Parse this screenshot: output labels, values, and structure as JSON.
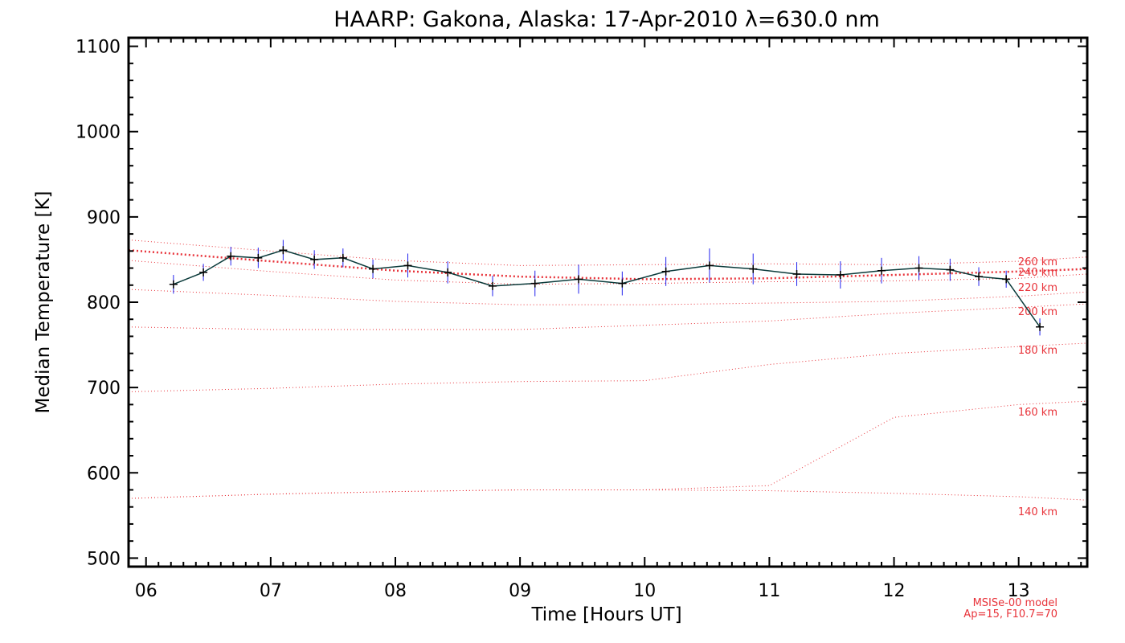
{
  "chart_data": {
    "type": "line",
    "title": "HAARP: Gakona,  Alaska: 17-Apr-2010 λ=630.0 nm",
    "xlabel": "Time [Hours UT]",
    "ylabel": "Median Temperature [K]",
    "xlim": [
      5.86,
      13.55
    ],
    "ylim": [
      490,
      1110
    ],
    "x_ticks": [
      "06",
      "07",
      "08",
      "09",
      "10",
      "11",
      "12",
      "13"
    ],
    "y_ticks": [
      "500",
      "600",
      "700",
      "800",
      "900",
      "1000",
      "1100"
    ],
    "series": [
      {
        "color": "#0a3a3a",
        "errorbar_color": "#2222ee",
        "x": [
          6.22,
          6.46,
          6.68,
          6.9,
          7.1,
          7.35,
          7.58,
          7.82,
          8.1,
          8.42,
          8.78,
          9.12,
          9.47,
          9.82,
          10.17,
          10.52,
          10.87,
          11.22,
          11.57,
          11.9,
          12.2,
          12.45,
          12.68,
          12.9,
          13.17
        ],
        "y": [
          821,
          835,
          854,
          852,
          861,
          850,
          852,
          839,
          843,
          835,
          819,
          822,
          827,
          822,
          836,
          843,
          839,
          833,
          832,
          837,
          840,
          838,
          830,
          827,
          771
        ],
        "err": [
          11,
          10,
          11,
          12,
          12,
          11,
          11,
          11,
          14,
          13,
          12,
          15,
          17,
          14,
          17,
          20,
          18,
          14,
          16,
          15,
          14,
          13,
          11,
          10,
          10
        ]
      }
    ],
    "fit_line": {
      "color": "#e8333a",
      "x": [
        5.86,
        7.0,
        8.0,
        9.0,
        10.0,
        11.0,
        12.0,
        13.0,
        13.55
      ],
      "y": [
        861,
        848,
        837,
        830,
        827,
        828,
        832,
        836,
        839
      ]
    },
    "model_curves": [
      {
        "label": "260 km",
        "y": [
          873,
          860,
          849,
          843,
          844,
          845,
          844,
          848,
          853
        ]
      },
      {
        "label": "240 km",
        "y": [
          849,
          836,
          826,
          821,
          822,
          824,
          825,
          828,
          833
        ]
      },
      {
        "label": "220 km",
        "y": [
          815,
          808,
          801,
          797,
          797,
          799,
          801,
          807,
          812
        ]
      },
      {
        "label": "200 km",
        "y": [
          771,
          768,
          768,
          768,
          773,
          778,
          787,
          794,
          798
        ]
      },
      {
        "label": "180 km",
        "y": [
          695,
          699,
          704,
          707,
          708,
          727,
          740,
          748,
          752
        ]
      },
      {
        "label": "160 km",
        "y": [
          570,
          575,
          578,
          580,
          580,
          585,
          665,
          680,
          684
        ]
      }
    ],
    "model_x": [
      5.86,
      7.0,
      8.0,
      9.0,
      10.0,
      11.0,
      12.0,
      13.0,
      13.55
    ],
    "model_extra": [
      {
        "label": "140 km",
        "y": [
          570,
          575,
          578,
          580,
          580,
          579,
          576,
          572,
          568
        ]
      }
    ],
    "notes": [
      "MSISe-00 model",
      "Ap=15, F10.7=70"
    ]
  }
}
